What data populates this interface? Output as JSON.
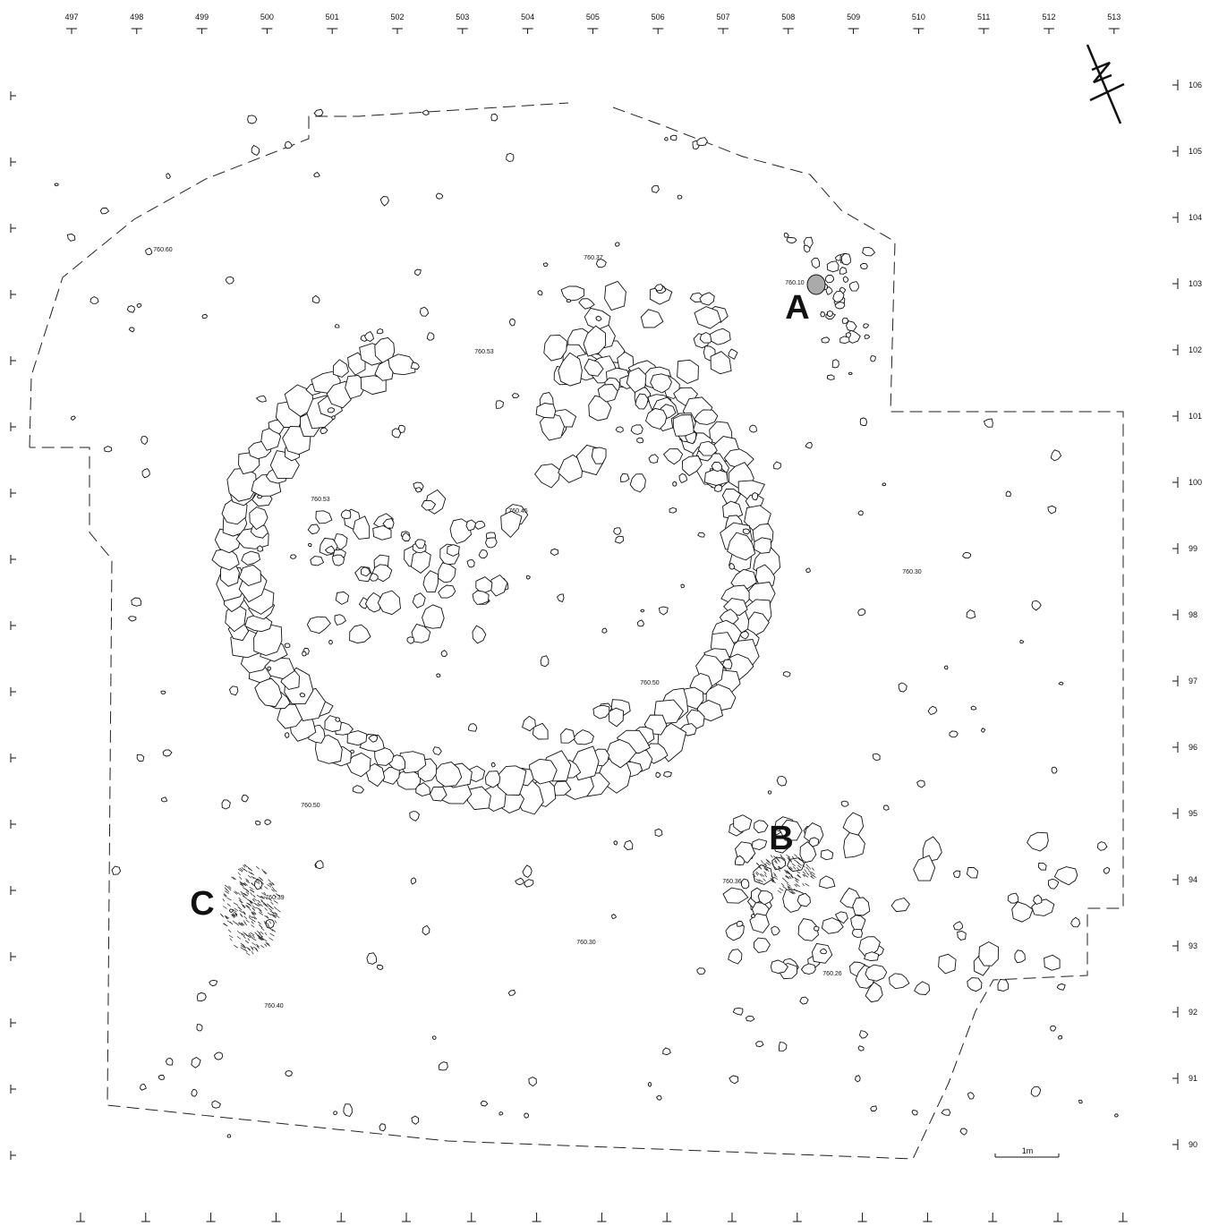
{
  "grid": {
    "x_labels": [
      "497",
      "498",
      "499",
      "500",
      "501",
      "502",
      "503",
      "504",
      "505",
      "506",
      "507",
      "508",
      "509",
      "510",
      "511",
      "512",
      "513"
    ],
    "y_labels": [
      "106",
      "105",
      "104",
      "103",
      "102",
      "101",
      "100",
      "99",
      "98",
      "97",
      "96",
      "95",
      "94",
      "93",
      "92",
      "91",
      "90"
    ]
  },
  "elevations": [
    "760.60",
    "760.37",
    "760.10",
    "760.53",
    "760.53",
    "760.45",
    "760.30",
    "760.50",
    "760.50",
    "760.36",
    "760.39",
    "760.30",
    "760.26",
    "760.40"
  ],
  "features": [
    "A",
    "B",
    "C"
  ],
  "scale_bar": "1m"
}
